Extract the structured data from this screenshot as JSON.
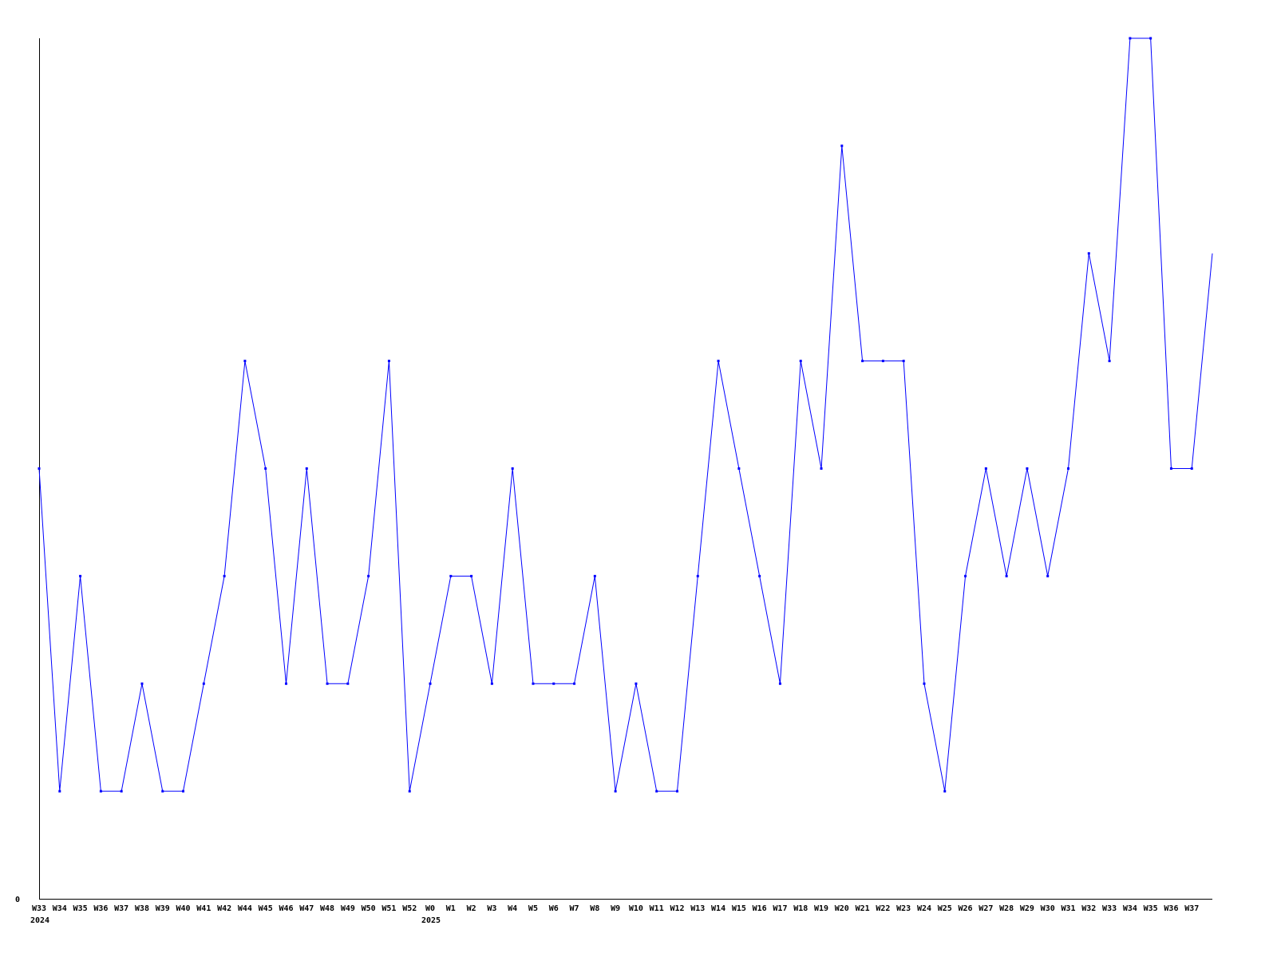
{
  "chart_data": {
    "type": "line",
    "title": "",
    "xlabel": "",
    "ylabel": "",
    "ylim": [
      0,
      8
    ],
    "y_tick_labels": [
      "0"
    ],
    "grid": false,
    "line_color": "#0000ff",
    "axis_color": "#000000",
    "categories": [
      "W33",
      "W34",
      "W35",
      "W36",
      "W37",
      "W38",
      "W39",
      "W40",
      "W41",
      "W42",
      "W44",
      "W45",
      "W46",
      "W47",
      "W48",
      "W49",
      "W50",
      "W51",
      "W52",
      "W0",
      "W1",
      "W2",
      "W3",
      "W4",
      "W5",
      "W6",
      "W7",
      "W8",
      "W9",
      "W10",
      "W11",
      "W12",
      "W13",
      "W14",
      "W15",
      "W16",
      "W17",
      "W18",
      "W19",
      "W20",
      "W21",
      "W22",
      "W23",
      "W24",
      "W25",
      "W26",
      "W27",
      "W28",
      "W29",
      "W30",
      "W31",
      "W32",
      "W33",
      "W34",
      "W35",
      "W36",
      "W37",
      ""
    ],
    "year_labels": [
      {
        "index": 0,
        "label": "2024"
      },
      {
        "index": 19,
        "label": "2025"
      }
    ],
    "values": [
      4,
      1,
      3,
      1,
      1,
      2,
      1,
      1,
      2,
      3,
      5,
      4,
      2,
      4,
      2,
      2,
      3,
      5,
      1,
      2,
      3,
      3,
      2,
      4,
      2,
      2,
      2,
      3,
      1,
      2,
      1,
      1,
      3,
      5,
      4,
      3,
      2,
      5,
      4,
      7,
      5,
      5,
      5,
      2,
      1,
      3,
      4,
      3,
      4,
      3,
      4,
      6,
      5,
      8,
      8,
      4,
      4,
      6
    ]
  }
}
